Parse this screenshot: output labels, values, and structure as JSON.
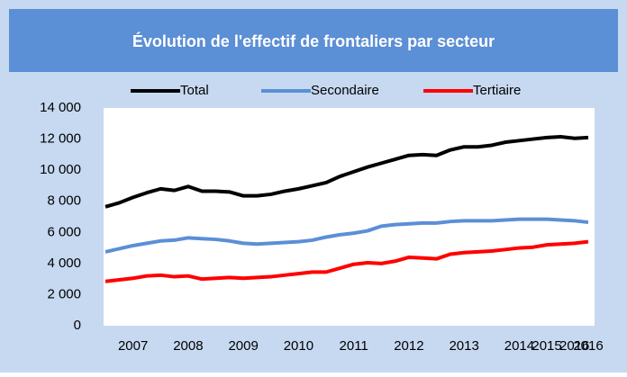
{
  "chart_data": {
    "type": "line",
    "title": "Évolution de l'effectif de frontaliers par secteur",
    "categories": [
      null,
      null,
      "2007",
      null,
      null,
      null,
      "2008",
      null,
      null,
      null,
      "2009",
      null,
      null,
      null,
      "2010",
      null,
      null,
      null,
      "2011",
      null,
      null,
      null,
      "2012",
      null,
      null,
      null,
      "2013",
      null,
      null,
      null,
      "2014",
      null,
      "2015",
      null,
      "2016",
      "2016"
    ],
    "series": [
      {
        "name": "Total",
        "color": "#000000",
        "values": [
          7650,
          7900,
          8250,
          8550,
          8800,
          8700,
          8950,
          8650,
          8650,
          8600,
          8350,
          8350,
          8450,
          8650,
          8800,
          9000,
          9200,
          9600,
          9900,
          10200,
          10450,
          10700,
          10950,
          11000,
          10950,
          11300,
          11500,
          11500,
          11600,
          11800,
          11900,
          12000,
          12100,
          12150,
          12050,
          12100
        ]
      },
      {
        "name": "Secondaire",
        "color": "#5b8fd6",
        "values": [
          4750,
          4950,
          5150,
          5300,
          5450,
          5500,
          5650,
          5600,
          5550,
          5450,
          5300,
          5250,
          5300,
          5350,
          5400,
          5500,
          5700,
          5850,
          5950,
          6100,
          6400,
          6500,
          6550,
          6600,
          6600,
          6700,
          6750,
          6750,
          6750,
          6800,
          6850,
          6850,
          6850,
          6800,
          6750,
          6650
        ]
      },
      {
        "name": "Tertiaire",
        "color": "#ff0000",
        "values": [
          2850,
          2950,
          3050,
          3200,
          3250,
          3150,
          3200,
          3000,
          3050,
          3100,
          3050,
          3100,
          3150,
          3250,
          3350,
          3450,
          3450,
          3700,
          3950,
          4050,
          4000,
          4150,
          4400,
          4350,
          4300,
          4600,
          4700,
          4750,
          4800,
          4900,
          5000,
          5050,
          5200,
          5250,
          5300,
          5400
        ]
      }
    ],
    "ylim": [
      0,
      14000
    ],
    "yticks": [
      0,
      {
        "value": 2000,
        "label": "2 000"
      },
      {
        "value": 4000,
        "label": "4 000"
      },
      {
        "value": 6000,
        "label": "6 000"
      },
      {
        "value": 8000,
        "label": "8 000"
      },
      {
        "value": 10000,
        "label": "10 000"
      },
      {
        "value": 12000,
        "label": "12 000"
      },
      {
        "value": 14000,
        "label": "14 000"
      }
    ],
    "grid": false,
    "legend": "top"
  }
}
